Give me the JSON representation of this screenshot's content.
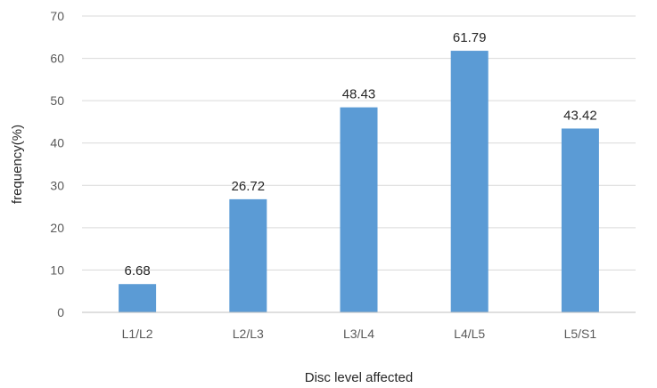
{
  "chart_data": {
    "type": "bar",
    "categories": [
      "L1/L2",
      "L2/L3",
      "L3/L4",
      "L4/L5",
      "L5/S1"
    ],
    "values": [
      6.68,
      26.72,
      48.43,
      61.79,
      43.42
    ],
    "value_labels": [
      "6.68",
      "26.72",
      "48.43",
      "61.79",
      "43.42"
    ],
    "title": "",
    "xlabel": "Disc level affected",
    "ylabel": "frequency(%)",
    "ylim": [
      0,
      70
    ],
    "yticks": [
      "0",
      "10",
      "20",
      "30",
      "40",
      "50",
      "60",
      "70"
    ],
    "grid": true,
    "legend": "none",
    "colors": {
      "bar": "#5B9BD5",
      "grid": "#D9D9D9",
      "axis": "#BFBFBF"
    }
  }
}
